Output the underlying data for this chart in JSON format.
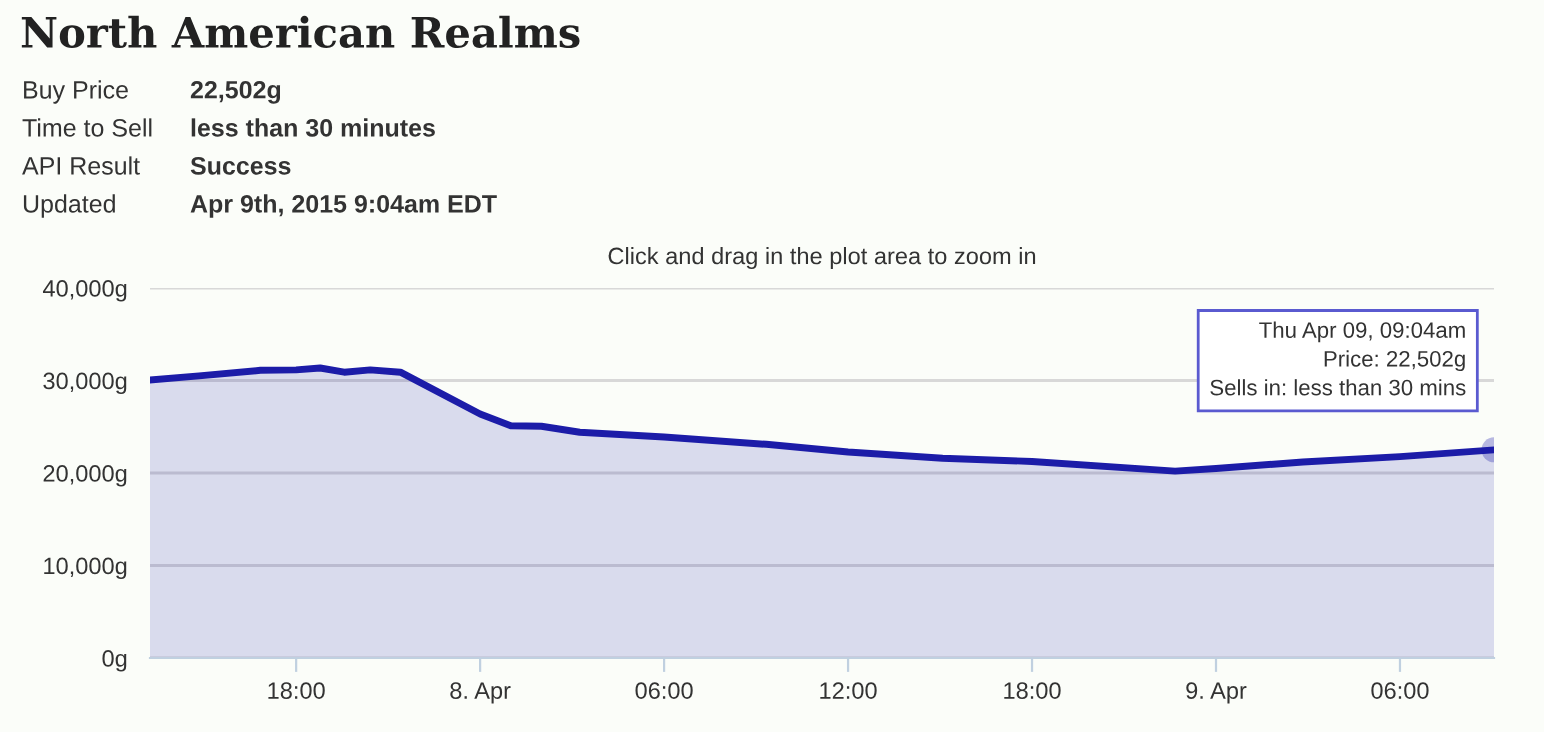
{
  "chart_data": {
    "type": "area",
    "title": "North American Realms",
    "subtitle": "Click and drag in the plot area to zoom in",
    "annotations": [
      "Buy Price",
      "22,502g",
      "Time to Sell",
      "less than 30 minutes",
      "API Result",
      "Success",
      "Updated",
      "Apr 9th, 2015 9:04am EDT",
      {
        "text": "Thu Apr 09, 09:04am\nPrice: 22,502g\nSells in: less than 30 mins",
        "x": "2015-04-09T09:04",
        "y": 22502
      }
    ],
    "x": [
      "2015-04-07T13:14",
      "2015-04-07T14:50",
      "2015-04-07T16:50",
      "2015-04-07T18:00",
      "2015-04-07T18:47",
      "2015-04-07T19:34",
      "2015-04-07T20:25",
      "2015-04-07T21:24",
      "2015-04-08T00:00",
      "2015-04-08T01:00",
      "2015-04-08T02:00",
      "2015-04-08T03:15",
      "2015-04-08T06:00",
      "2015-04-08T09:20",
      "2015-04-08T12:00",
      "2015-04-08T15:05",
      "2015-04-08T18:00",
      "2015-04-08T22:40",
      "2015-04-09T00:00",
      "2015-04-09T02:50",
      "2015-04-09T06:00",
      "2015-04-09T09:04"
    ],
    "series": [
      {
        "color": "#1c1ca8",
        "values": [
          30050,
          30500,
          31100,
          31150,
          31350,
          30900,
          31150,
          30900,
          26380,
          25100,
          25050,
          24400,
          23900,
          23100,
          22270,
          21600,
          21250,
          20200,
          20480,
          21190,
          21770,
          22502
        ]
      }
    ],
    "xlim": [
      "2015-04-07T13:14",
      "2015-04-09T09:04"
    ],
    "xticks": [
      {
        "value": "2015-04-07T18:00",
        "label": "18:00"
      },
      {
        "value": "2015-04-08T00:00",
        "label": "8. Apr"
      },
      {
        "value": "2015-04-08T06:00",
        "label": "06:00"
      },
      {
        "value": "2015-04-08T12:00",
        "label": "12:00"
      },
      {
        "value": "2015-04-08T18:00",
        "label": "18:00"
      },
      {
        "value": "2015-04-09T00:00",
        "label": "9. Apr"
      },
      {
        "value": "2015-04-09T06:00",
        "label": "06:00"
      }
    ],
    "ylim": [
      0,
      40000
    ],
    "yticks": [
      {
        "value": 0,
        "label": "0g"
      },
      {
        "value": 10000,
        "label": "10,000g"
      },
      {
        "value": 20000,
        "label": "20,000g"
      },
      {
        "value": 30000,
        "label": "30,000g"
      },
      {
        "value": 40000,
        "label": "40,000g"
      }
    ],
    "grid": "y",
    "legend": false
  }
}
